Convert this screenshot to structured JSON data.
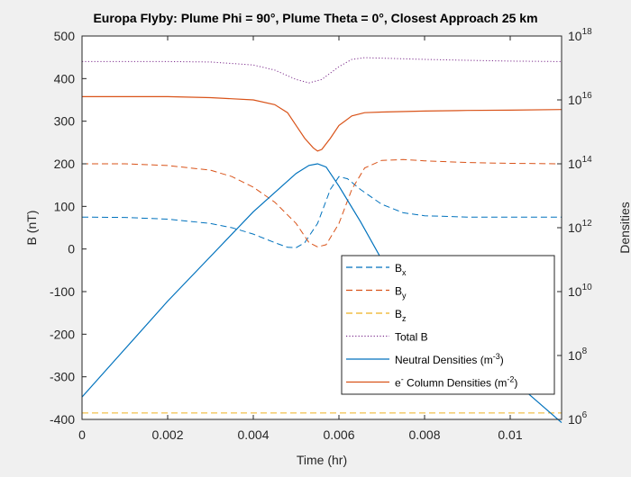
{
  "chart_data": {
    "type": "line",
    "title": "Europa Flyby: Plume Phi = 90°, Plume Theta = 0°, Closest Approach 25 km",
    "xlabel": "Time (hr)",
    "ylabel": "B (nT)",
    "ylabel_right": "Densities",
    "xlim": [
      0,
      0.0112
    ],
    "ylim": [
      -400,
      500
    ],
    "ylim_right_log10": [
      6,
      18
    ],
    "x_ticks": [
      0,
      0.002,
      0.004,
      0.006,
      0.008,
      0.01
    ],
    "x_tick_labels": [
      "0",
      "0.002",
      "0.004",
      "0.006",
      "0.008",
      "0.01"
    ],
    "y_ticks": [
      -400,
      -300,
      -200,
      -100,
      0,
      100,
      200,
      300,
      400,
      500
    ],
    "y_tick_labels": [
      "-400",
      "-300",
      "-200",
      "-100",
      "0",
      "100",
      "200",
      "300",
      "400",
      "500"
    ],
    "y_right_ticks_log10": [
      6,
      8,
      10,
      12,
      14,
      16,
      18
    ],
    "y_right_tick_base": "10",
    "y_right_tick_exponents": [
      "6",
      "8",
      "10",
      "12",
      "14",
      "16",
      "18"
    ],
    "grid": false,
    "legend_position": "bottom-right",
    "series": [
      {
        "name": "B",
        "sub": "x",
        "axis": "left",
        "color": "#0072bd",
        "dash": "dashed",
        "x": [
          0,
          0.001,
          0.002,
          0.003,
          0.0035,
          0.004,
          0.0045,
          0.0048,
          0.005,
          0.0052,
          0.0055,
          0.0058,
          0.006,
          0.0062,
          0.0065,
          0.007,
          0.0075,
          0.008,
          0.009,
          0.01,
          0.0112
        ],
        "y": [
          75,
          74,
          70,
          60,
          50,
          35,
          15,
          4,
          3,
          15,
          60,
          140,
          170,
          165,
          140,
          105,
          85,
          78,
          75,
          75,
          75
        ]
      },
      {
        "name": "B",
        "sub": "y",
        "axis": "left",
        "color": "#d95319",
        "dash": "dashed",
        "x": [
          0,
          0.001,
          0.002,
          0.003,
          0.0035,
          0.004,
          0.0045,
          0.005,
          0.0053,
          0.0055,
          0.0057,
          0.006,
          0.0063,
          0.0066,
          0.007,
          0.0075,
          0.008,
          0.009,
          0.01,
          0.0112
        ],
        "y": [
          200,
          200,
          196,
          185,
          170,
          145,
          110,
          60,
          15,
          5,
          10,
          60,
          140,
          190,
          208,
          210,
          207,
          203,
          201,
          200
        ]
      },
      {
        "name": "B",
        "sub": "z",
        "axis": "left",
        "color": "#edb120",
        "dash": "dashed",
        "x": [
          0,
          0.0112
        ],
        "y": [
          -385,
          -385
        ]
      },
      {
        "name": "Total B",
        "axis": "left",
        "color": "#7e2f8e",
        "dash": "dotted",
        "x": [
          0,
          0.002,
          0.003,
          0.004,
          0.0045,
          0.005,
          0.0053,
          0.0056,
          0.006,
          0.0063,
          0.0066,
          0.007,
          0.008,
          0.009,
          0.01,
          0.0112
        ],
        "y": [
          440,
          440,
          439,
          432,
          420,
          398,
          390,
          398,
          428,
          445,
          449,
          448,
          445,
          443,
          441,
          440
        ]
      },
      {
        "name": "Neutral Densities (m",
        "sup": "-3",
        "suffix": ")",
        "axis": "right",
        "color": "#0072bd",
        "dash": "solid",
        "x": [
          0,
          0.001,
          0.002,
          0.003,
          0.004,
          0.0045,
          0.005,
          0.0053,
          0.0055,
          0.0057,
          0.006,
          0.0065,
          0.007,
          0.008,
          0.009,
          0.01,
          0.0112
        ],
        "y_log10": [
          6.7,
          8.2,
          9.7,
          11.1,
          12.5,
          13.1,
          13.7,
          13.95,
          14.0,
          13.9,
          13.3,
          12.2,
          11.0,
          9.7,
          8.4,
          7.3,
          5.9
        ]
      },
      {
        "name": "e",
        "sup": "-",
        "name_rest": " Column Densities (m",
        "sup2": "-2",
        "suffix": ")",
        "axis": "right",
        "color": "#d95319",
        "dash": "solid",
        "x": [
          0,
          0.001,
          0.002,
          0.003,
          0.004,
          0.0045,
          0.0048,
          0.005,
          0.0052,
          0.0054,
          0.0055,
          0.0056,
          0.0058,
          0.006,
          0.0063,
          0.0066,
          0.007,
          0.008,
          0.009,
          0.01,
          0.0112
        ],
        "y_log10": [
          16.1,
          16.1,
          16.1,
          16.07,
          16.0,
          15.85,
          15.6,
          15.2,
          14.8,
          14.5,
          14.4,
          14.45,
          14.8,
          15.2,
          15.5,
          15.6,
          15.62,
          15.65,
          15.67,
          15.68,
          15.7
        ]
      }
    ]
  }
}
